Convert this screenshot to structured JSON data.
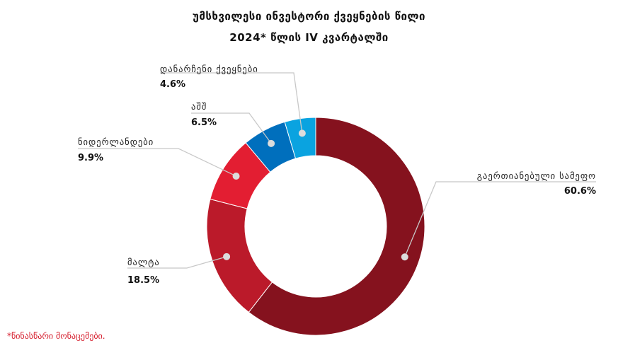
{
  "chart_data": {
    "type": "pie",
    "title": "უმსხვილესი ინვესტორი ქვეყნების წილი",
    "subtitle": "2024* წლის IV კვარტალში",
    "footnote": "*წინასწარი მონაცემები.",
    "slices": [
      {
        "label": "გაერთიანებული სამეფო",
        "value": 60.6,
        "value_label": "60.6%",
        "color": "#85121e"
      },
      {
        "label": "მალტა",
        "value": 18.5,
        "value_label": "18.5%",
        "color": "#bb1a2a"
      },
      {
        "label": "ნიდერლანდები",
        "value": 9.9,
        "value_label": "9.9%",
        "color": "#e31e32"
      },
      {
        "label": "აშშ",
        "value": 6.5,
        "value_label": "6.5%",
        "color": "#006fbd"
      },
      {
        "label": "დანარჩენი ქვეყნები",
        "value": 4.6,
        "value_label": "4.6%",
        "color": "#0aa3e0"
      }
    ],
    "donut": true,
    "legend": "none"
  }
}
